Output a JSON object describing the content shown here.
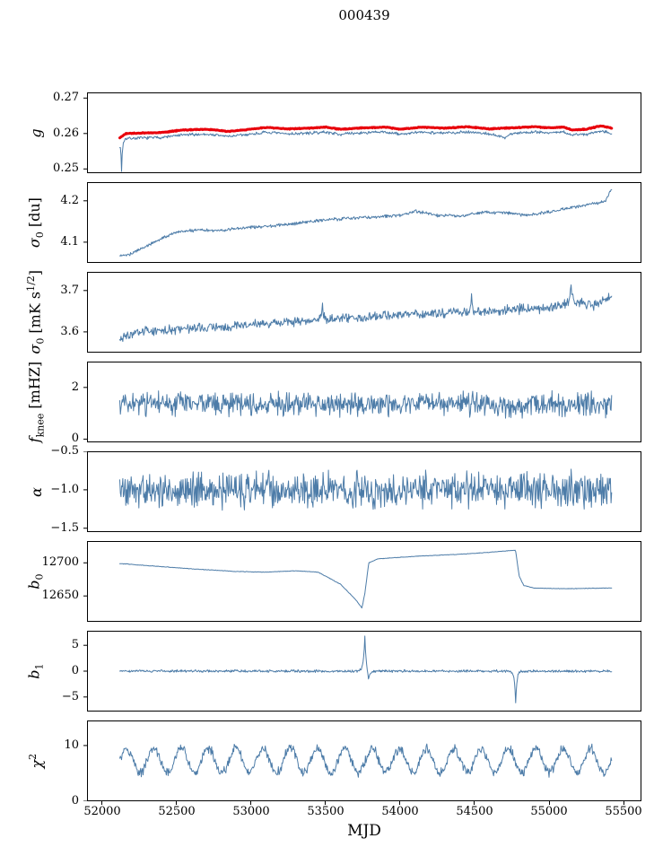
{
  "title": "000439",
  "axes": {
    "xlabel": "MJD",
    "xlim": [
      51900,
      55620
    ],
    "xticks": [
      52000,
      52500,
      53000,
      53500,
      54000,
      54500,
      55000,
      55500
    ],
    "xtick_labels": [
      "52000",
      "52500",
      "53000",
      "53500",
      "54000",
      "54500",
      "55000",
      "55500"
    ]
  },
  "colors": {
    "blue": "#4d7ca8",
    "red": "#e8000b",
    "axis": "#000000"
  },
  "chart_data": [
    {
      "type": "line",
      "name": "g",
      "ylabel_segments": [
        {
          "t": "g",
          "style": "italic"
        }
      ],
      "ylim": [
        0.2488,
        0.2716
      ],
      "yticks": [
        0.25,
        0.26,
        0.27
      ],
      "ytick_labels": [
        "0.25",
        "0.26",
        "0.27"
      ],
      "series": [
        {
          "name": "g-fit",
          "color_key": "blue",
          "width": 1,
          "x_start": 52120,
          "x_end": 55420,
          "dt": 4,
          "seed": 7,
          "noise": 0.0005,
          "anchors": [
            [
              52120,
              0.2572
            ],
            [
              52160,
              0.2586
            ],
            [
              52250,
              0.2587
            ],
            [
              52400,
              0.2589
            ],
            [
              52550,
              0.2596
            ],
            [
              52700,
              0.2598
            ],
            [
              52850,
              0.2592
            ],
            [
              52950,
              0.2596
            ],
            [
              53100,
              0.2603
            ],
            [
              53250,
              0.2599
            ],
            [
              53400,
              0.2601
            ],
            [
              53500,
              0.2604
            ],
            [
              53600,
              0.2598
            ],
            [
              53750,
              0.2602
            ],
            [
              53900,
              0.2604
            ],
            [
              54000,
              0.2598
            ],
            [
              54150,
              0.2604
            ],
            [
              54300,
              0.2601
            ],
            [
              54450,
              0.2605
            ],
            [
              54600,
              0.2599
            ],
            [
              54700,
              0.2588
            ],
            [
              54750,
              0.26
            ],
            [
              54900,
              0.2605
            ],
            [
              55000,
              0.2602
            ],
            [
              55100,
              0.2604
            ],
            [
              55150,
              0.2596
            ],
            [
              55250,
              0.2598
            ],
            [
              55350,
              0.2608
            ],
            [
              55420,
              0.2601
            ]
          ],
          "spikes": [
            {
              "x": 52132,
              "amp": -0.0082,
              "width": 5
            }
          ]
        },
        {
          "name": "g-smooth",
          "color_key": "red",
          "width": 3,
          "x_start": 52120,
          "x_end": 55420,
          "dt": 4,
          "seed": 8,
          "noise": 0.00015,
          "anchors": [
            [
              52120,
              0.2588
            ],
            [
              52160,
              0.26
            ],
            [
              52250,
              0.2601
            ],
            [
              52400,
              0.2603
            ],
            [
              52550,
              0.261
            ],
            [
              52700,
              0.2612
            ],
            [
              52850,
              0.2606
            ],
            [
              52950,
              0.261
            ],
            [
              53100,
              0.2617
            ],
            [
              53250,
              0.2613
            ],
            [
              53400,
              0.2615
            ],
            [
              53500,
              0.2618
            ],
            [
              53600,
              0.2612
            ],
            [
              53750,
              0.2616
            ],
            [
              53900,
              0.2618
            ],
            [
              54000,
              0.2612
            ],
            [
              54150,
              0.2618
            ],
            [
              54300,
              0.2615
            ],
            [
              54450,
              0.2619
            ],
            [
              54600,
              0.2613
            ],
            [
              54750,
              0.2616
            ],
            [
              54900,
              0.2619
            ],
            [
              55000,
              0.2616
            ],
            [
              55100,
              0.2618
            ],
            [
              55150,
              0.261
            ],
            [
              55250,
              0.2612
            ],
            [
              55350,
              0.2622
            ],
            [
              55420,
              0.2615
            ]
          ]
        }
      ]
    },
    {
      "type": "line",
      "name": "sigma0-du",
      "ylabel_segments": [
        {
          "t": "σ",
          "style": "italic"
        },
        {
          "t": "0",
          "style": "sub"
        },
        {
          "t": " [du]",
          "style": "normal"
        }
      ],
      "ylim": [
        4.05,
        4.245
      ],
      "yticks": [
        4.1,
        4.2
      ],
      "ytick_labels": [
        "4.1",
        "4.2"
      ],
      "series": [
        {
          "name": "sigma0-du",
          "color_key": "blue",
          "width": 1,
          "x_start": 52120,
          "x_end": 55420,
          "dt": 4,
          "seed": 2,
          "noise": 0.0045,
          "anchors": [
            [
              52120,
              4.067
            ],
            [
              52200,
              4.072
            ],
            [
              52350,
              4.1
            ],
            [
              52500,
              4.125
            ],
            [
              52650,
              4.13
            ],
            [
              52800,
              4.128
            ],
            [
              52950,
              4.135
            ],
            [
              53100,
              4.138
            ],
            [
              53250,
              4.143
            ],
            [
              53400,
              4.15
            ],
            [
              53550,
              4.155
            ],
            [
              53700,
              4.158
            ],
            [
              53850,
              4.162
            ],
            [
              54000,
              4.165
            ],
            [
              54100,
              4.175
            ],
            [
              54250,
              4.165
            ],
            [
              54400,
              4.163
            ],
            [
              54550,
              4.172
            ],
            [
              54700,
              4.172
            ],
            [
              54850,
              4.165
            ],
            [
              55000,
              4.173
            ],
            [
              55150,
              4.183
            ],
            [
              55300,
              4.193
            ],
            [
              55380,
              4.2
            ],
            [
              55420,
              4.23
            ]
          ]
        }
      ]
    },
    {
      "type": "line",
      "name": "sigma0-mK",
      "ylabel_segments": [
        {
          "t": "σ",
          "style": "italic"
        },
        {
          "t": "0",
          "style": "sub"
        },
        {
          "t": " [mK s",
          "style": "normal"
        },
        {
          "t": "1/2",
          "style": "sup"
        },
        {
          "t": "]",
          "style": "normal"
        }
      ],
      "ylim": [
        3.55,
        3.745
      ],
      "yticks": [
        3.6,
        3.7
      ],
      "ytick_labels": [
        "3.6",
        "3.7"
      ],
      "series": [
        {
          "name": "sigma0-mK",
          "color_key": "blue",
          "width": 1,
          "x_start": 52120,
          "x_end": 55420,
          "dt": 4,
          "seed": 3,
          "noise": 0.014,
          "anchors": [
            [
              52120,
              3.585
            ],
            [
              52250,
              3.598
            ],
            [
              52400,
              3.605
            ],
            [
              52600,
              3.607
            ],
            [
              52800,
              3.613
            ],
            [
              53000,
              3.618
            ],
            [
              53200,
              3.622
            ],
            [
              53400,
              3.628
            ],
            [
              53600,
              3.632
            ],
            [
              53800,
              3.638
            ],
            [
              54000,
              3.64
            ],
            [
              54200,
              3.645
            ],
            [
              54400,
              3.648
            ],
            [
              54600,
              3.648
            ],
            [
              54800,
              3.655
            ],
            [
              55000,
              3.658
            ],
            [
              55150,
              3.672
            ],
            [
              55300,
              3.665
            ],
            [
              55420,
              3.685
            ]
          ],
          "spikes": [
            {
              "x": 53480,
              "amp": 0.04,
              "width": 6
            },
            {
              "x": 54480,
              "amp": 0.04,
              "width": 6
            },
            {
              "x": 55148,
              "amp": 0.045,
              "width": 8
            }
          ]
        }
      ]
    },
    {
      "type": "line",
      "name": "f-knee",
      "ylabel_segments": [
        {
          "t": "f",
          "style": "italic"
        },
        {
          "t": "knee",
          "style": "sub"
        },
        {
          "t": " [mHZ]",
          "style": "normal"
        }
      ],
      "ylim": [
        -0.125,
        3.0
      ],
      "yticks": [
        0,
        2
      ],
      "ytick_labels": [
        "0",
        "2"
      ],
      "series": [
        {
          "name": "f-knee",
          "color_key": "blue",
          "width": 1,
          "x_start": 52120,
          "x_end": 55420,
          "dt": 4,
          "seed": 4,
          "noise": 0.55,
          "anchors": [
            [
              52120,
              1.35
            ],
            [
              55420,
              1.35
            ]
          ]
        }
      ]
    },
    {
      "type": "line",
      "name": "alpha",
      "ylabel_segments": [
        {
          "t": "α",
          "style": "italic"
        }
      ],
      "ylim": [
        -1.55,
        -0.5
      ],
      "yticks": [
        -1.5,
        -1.0,
        -0.5
      ],
      "ytick_labels": [
        "−1.5",
        "−1.0",
        "−0.5"
      ],
      "series": [
        {
          "name": "alpha",
          "color_key": "blue",
          "width": 1,
          "x_start": 52120,
          "x_end": 55420,
          "dt": 4,
          "seed": 5,
          "noise": 0.28,
          "anchors": [
            [
              52120,
              -1.0
            ],
            [
              55420,
              -1.0
            ]
          ]
        }
      ]
    },
    {
      "type": "line",
      "name": "b0",
      "ylabel_segments": [
        {
          "t": "b",
          "style": "italic"
        },
        {
          "t": "0",
          "style": "sub"
        }
      ],
      "ylim": [
        12611,
        12733
      ],
      "yticks": [
        12650,
        12700
      ],
      "ytick_labels": [
        "12650",
        "12700"
      ],
      "series": [
        {
          "name": "b0",
          "color_key": "blue",
          "width": 1,
          "x_start": 52120,
          "x_end": 55420,
          "dt": 4,
          "seed": 6,
          "noise": 0.5,
          "anchors": [
            [
              52120,
              12699
            ],
            [
              52300,
              12696
            ],
            [
              52600,
              12691
            ],
            [
              52900,
              12687
            ],
            [
              53100,
              12686
            ],
            [
              53300,
              12688
            ],
            [
              53450,
              12686
            ],
            [
              53600,
              12668
            ],
            [
              53700,
              12645
            ],
            [
              53745,
              12632
            ],
            [
              53765,
              12655
            ],
            [
              53790,
              12700
            ],
            [
              53850,
              12706
            ],
            [
              54100,
              12710
            ],
            [
              54400,
              12713
            ],
            [
              54600,
              12716
            ],
            [
              54760,
              12719
            ],
            [
              54775,
              12719
            ],
            [
              54800,
              12680
            ],
            [
              54830,
              12666
            ],
            [
              54900,
              12662
            ],
            [
              55100,
              12661
            ],
            [
              55420,
              12662
            ]
          ]
        }
      ]
    },
    {
      "type": "line",
      "name": "b1",
      "ylabel_segments": [
        {
          "t": "b",
          "style": "italic"
        },
        {
          "t": "1",
          "style": "sub"
        }
      ],
      "ylim": [
        -7.8,
        7.8
      ],
      "yticks": [
        -5,
        0,
        5
      ],
      "ytick_labels": [
        "−5",
        "0",
        "5"
      ],
      "series": [
        {
          "name": "b1",
          "color_key": "blue",
          "width": 1,
          "x_start": 52120,
          "x_end": 55420,
          "dt": 4,
          "seed": 9,
          "noise": 0.3,
          "anchors": [
            [
              52120,
              0
            ],
            [
              55420,
              0
            ]
          ],
          "spikes": [
            {
              "x": 53764,
              "amp": 7,
              "width": 9
            },
            {
              "x": 53788,
              "amp": -2,
              "width": 10
            },
            {
              "x": 54776,
              "amp": -6.2,
              "width": 8
            }
          ]
        }
      ]
    },
    {
      "type": "line",
      "name": "chi2",
      "ylabel_segments": [
        {
          "t": "χ",
          "style": "italic"
        },
        {
          "t": "2",
          "style": "sup"
        }
      ],
      "ylim": [
        0,
        14.5
      ],
      "yticks": [
        0,
        10
      ],
      "ytick_labels": [
        "0",
        "10"
      ],
      "series": [
        {
          "name": "chi2",
          "color_key": "blue",
          "width": 1,
          "x_start": 52120,
          "x_end": 55420,
          "dt": 4,
          "seed": 10,
          "noise": 1.0,
          "anchors": [
            [
              52120,
              7.3
            ],
            [
              55420,
              7.3
            ]
          ],
          "osc": {
            "amp": 2.2,
            "period": 183,
            "phase": 0
          }
        }
      ]
    }
  ]
}
